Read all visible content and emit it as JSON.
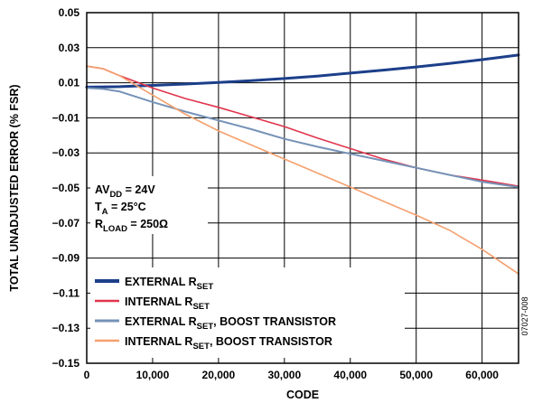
{
  "chart_data": {
    "type": "line",
    "xlabel": "CODE",
    "ylabel": "TOTAL UNADJUSTED ERROR (% FSR)",
    "xlim": [
      0,
      65535
    ],
    "ylim": [
      -0.15,
      0.05
    ],
    "x_ticks": [
      "0",
      "10,000",
      "20,000",
      "30,000",
      "40,000",
      "50,000",
      "60,000"
    ],
    "y_ticks": [
      "0.05",
      "0.03",
      "0.01",
      "−0.01",
      "−0.03",
      "−0.05",
      "−0.07",
      "−0.09",
      "−0.11",
      "−0.13",
      "−0.15"
    ],
    "grid": true,
    "legend_position": "bottom-left",
    "annotations": [
      {
        "main": "AV",
        "sub": "DD",
        "rest": " = 24V"
      },
      {
        "main": "T",
        "sub": "A",
        "rest": " = 25°C"
      },
      {
        "main": "R",
        "sub": "LOAD",
        "rest": " = 250Ω"
      }
    ],
    "series": [
      {
        "name": "EXTERNAL RSET",
        "legend": {
          "main": "EXTERNAL R",
          "sub": "SET",
          "rest": ""
        },
        "color": "#1c3f8a",
        "width": 3,
        "x": [
          0,
          5000,
          10000,
          15000,
          20000,
          25000,
          30000,
          35000,
          40000,
          45000,
          50000,
          55000,
          60000,
          65535
        ],
        "y": [
          0.0075,
          0.0078,
          0.0085,
          0.0093,
          0.0102,
          0.0112,
          0.0124,
          0.0138,
          0.0155,
          0.0172,
          0.019,
          0.021,
          0.0232,
          0.0258
        ]
      },
      {
        "name": "INTERNAL RSET",
        "legend": {
          "main": "INTERNAL R",
          "sub": "SET",
          "rest": ""
        },
        "color": "#e0344d",
        "width": 1.6,
        "x": [
          0,
          2500,
          5000,
          10000,
          15000,
          20000,
          25000,
          30000,
          35000,
          40000,
          45000,
          50000,
          55000,
          60000,
          65535
        ],
        "y": [
          0.0195,
          0.018,
          0.014,
          0.007,
          0.001,
          -0.004,
          -0.0095,
          -0.015,
          -0.0215,
          -0.0275,
          -0.0335,
          -0.0385,
          -0.0425,
          -0.0455,
          -0.049
        ]
      },
      {
        "name": "EXTERNAL RSET, BOOST TRANSISTOR",
        "legend": {
          "main": "EXTERNAL R",
          "sub": "SET",
          "rest": ", BOOST TRANSISTOR"
        },
        "color": "#7592b7",
        "width": 2,
        "x": [
          0,
          2500,
          5000,
          10000,
          15000,
          20000,
          25000,
          30000,
          35000,
          40000,
          45000,
          50000,
          55000,
          60000,
          65535
        ],
        "y": [
          0.007,
          0.0065,
          0.005,
          -0.001,
          -0.0065,
          -0.0115,
          -0.0165,
          -0.022,
          -0.0265,
          -0.0305,
          -0.0345,
          -0.0385,
          -0.0425,
          -0.0465,
          -0.0495
        ]
      },
      {
        "name": "INTERNAL RSET, BOOST TRANSISTOR",
        "legend": {
          "main": "INTERNAL R",
          "sub": "SET",
          "rest": ", BOOST TRANSISTOR"
        },
        "color": "#f5a06e",
        "width": 1.6,
        "x": [
          0,
          2500,
          5000,
          10000,
          15000,
          20000,
          25000,
          30000,
          35000,
          40000,
          45000,
          50000,
          55000,
          60000,
          65535
        ],
        "y": [
          0.0195,
          0.018,
          0.014,
          0.003,
          -0.008,
          -0.0175,
          -0.0255,
          -0.0335,
          -0.0415,
          -0.0495,
          -0.0575,
          -0.0655,
          -0.074,
          -0.085,
          -0.099
        ]
      }
    ]
  },
  "figure_id": "07027-008"
}
